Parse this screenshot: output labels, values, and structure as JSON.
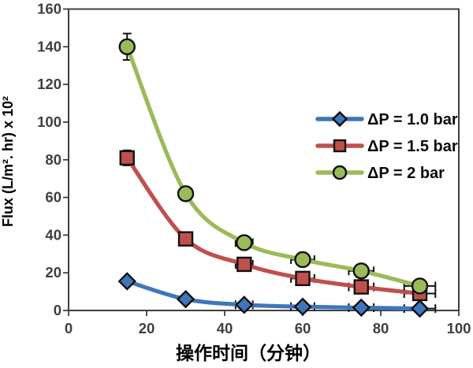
{
  "chart_data": {
    "type": "line",
    "title": "",
    "xlabel": "操作时间（分钟）",
    "ylabel": "Flux (L/m². hr) x 10²",
    "xlim": [
      0,
      100
    ],
    "ylim": [
      0,
      160
    ],
    "xticks": [
      0,
      20,
      40,
      60,
      80,
      100
    ],
    "yticks": [
      0,
      20,
      40,
      60,
      80,
      100,
      120,
      140,
      160
    ],
    "grid": false,
    "plot_border": true,
    "legend_position": "inside-right-middle",
    "x": [
      15,
      30,
      45,
      60,
      75,
      90
    ],
    "series": [
      {
        "name": "ΔP = 1.0 bar",
        "marker": "diamond",
        "color": "#3f76bb",
        "values": [
          15.5,
          6,
          3,
          2,
          1.5,
          1
        ],
        "x_err": [
          0,
          0,
          2.2,
          3,
          3.2,
          4
        ],
        "y_err": [
          0,
          0,
          0,
          0,
          0,
          0
        ]
      },
      {
        "name": "ΔP = 1.5 bar",
        "marker": "square",
        "color": "#c0504d",
        "values": [
          81,
          38,
          24.5,
          17,
          12.5,
          9
        ],
        "x_err": [
          0,
          0,
          2.2,
          3,
          3.2,
          4
        ],
        "y_err": [
          4,
          0,
          0,
          0,
          0,
          0
        ]
      },
      {
        "name": "ΔP = 2 bar",
        "marker": "circle",
        "color": "#9bbb59",
        "values": [
          140,
          62,
          36,
          27,
          21,
          13
        ],
        "x_err": [
          0,
          0,
          2.2,
          3,
          3.2,
          4
        ],
        "y_err": [
          7,
          0,
          0,
          0,
          0,
          0
        ]
      }
    ],
    "colors": {
      "axis": "#3f3f3f",
      "tick_label": "#3f3f3f",
      "error_bar": "#111111",
      "marker_outline": "#111111",
      "background": "#ffffff"
    }
  }
}
